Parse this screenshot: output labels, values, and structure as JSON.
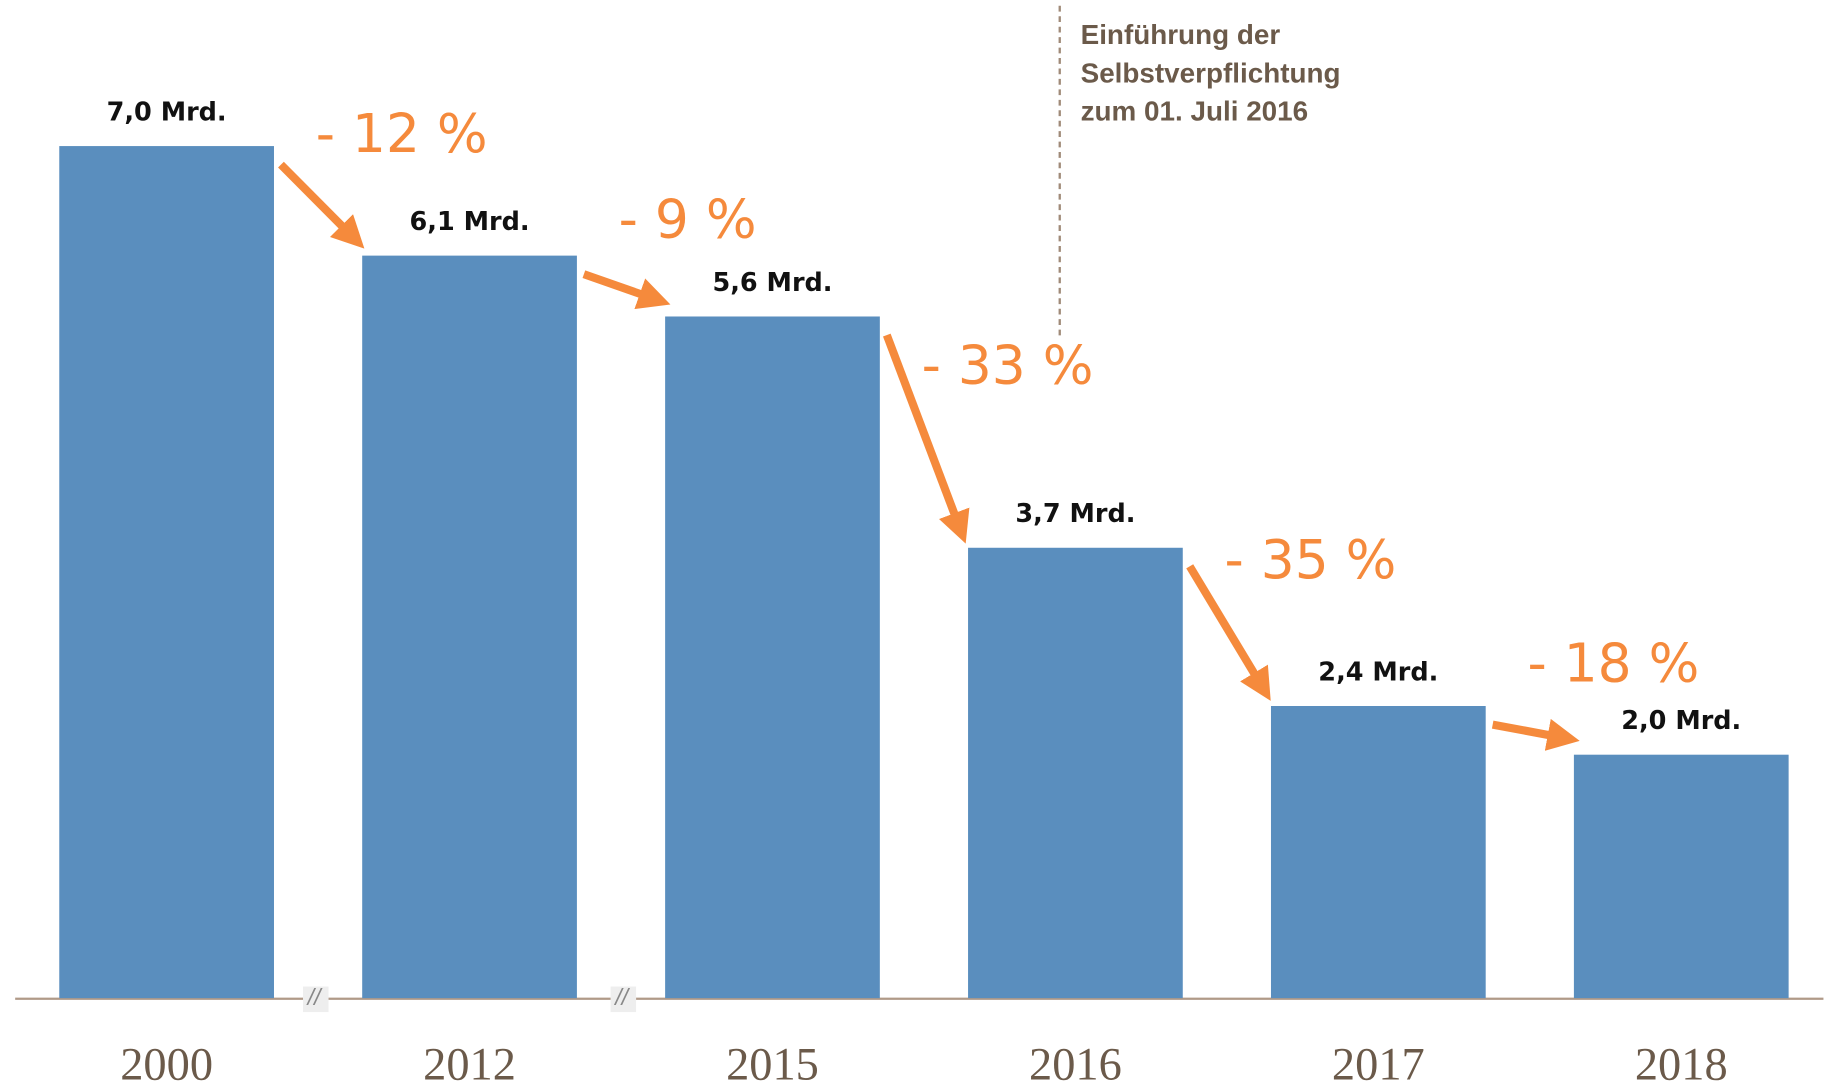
{
  "chart_data": {
    "type": "bar",
    "categories": [
      "2000",
      "2012",
      "2015",
      "2016",
      "2017",
      "2018"
    ],
    "values": [
      7.0,
      6.1,
      5.6,
      3.7,
      2.4,
      2.0
    ],
    "value_labels": [
      "7,0 Mrd.",
      "6,1 Mrd.",
      "5,6 Mrd.",
      "3,7 Mrd.",
      "2,4 Mrd.",
      "2,0 Mrd."
    ],
    "changes": [
      "- 12 %",
      "- 9 %",
      "- 33 %",
      "- 35 %",
      "- 18 %"
    ],
    "annotation": [
      "Einführung der",
      "Selbstverpflichtung",
      "zum 01. Juli 2016"
    ],
    "color": "#5a8ebe",
    "change_color": "#f58a3c",
    "ylim": [
      0,
      8.2
    ]
  }
}
